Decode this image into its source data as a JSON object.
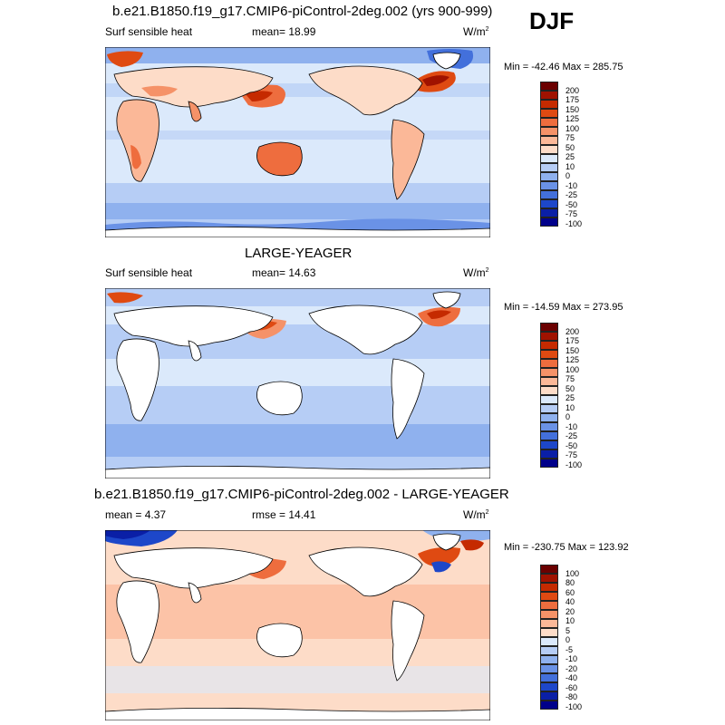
{
  "season": "DJF",
  "panels": [
    {
      "title": "b.e21.B1850.f19_g17.CMIP6-piControl-2deg.002 (yrs 900-999)",
      "left_label": "Surf sensible heat",
      "center_label": "mean=  18.99",
      "units": "W/m",
      "units_sup": "2",
      "minmax": "Min = -42.46 Max = 285.75",
      "colorbar_labels": [
        "200",
        "175",
        "150",
        "125",
        "100",
        "75",
        "50",
        "25",
        "10",
        "0",
        "-10",
        "-25",
        "-50",
        "-75",
        "-100"
      ]
    },
    {
      "title": "LARGE-YEAGER",
      "left_label": "Surf sensible heat",
      "center_label": "mean=  14.63",
      "units": "W/m",
      "units_sup": "2",
      "minmax": "Min = -14.59 Max = 273.95",
      "colorbar_labels": [
        "200",
        "175",
        "150",
        "125",
        "100",
        "75",
        "50",
        "25",
        "10",
        "0",
        "-10",
        "-25",
        "-50",
        "-75",
        "-100"
      ]
    },
    {
      "title": "b.e21.B1850.f19_g17.CMIP6-piControl-2deg.002 - LARGE-YEAGER",
      "left_label": "mean =   4.37",
      "center_label": "rmse =  14.41",
      "units": "W/m",
      "units_sup": "2",
      "minmax": "Min = -230.75 Max = 123.92",
      "colorbar_labels": [
        "100",
        "80",
        "60",
        "40",
        "20",
        "10",
        "5",
        "0",
        "-5",
        "-10",
        "-20",
        "-40",
        "-60",
        "-80",
        "-100"
      ]
    }
  ],
  "colors": {
    "scale": [
      "#6b0000",
      "#a01200",
      "#c52a00",
      "#df4a12",
      "#ee6d3e",
      "#f59268",
      "#fbb898",
      "#fddcc8",
      "#dbe9fb",
      "#b6cdf5",
      "#8fb1ee",
      "#6a92e6",
      "#4370db",
      "#1d47c9",
      "#0a1fa6",
      "#00008a"
    ],
    "land": "#ffffff",
    "coast": "#000000"
  }
}
